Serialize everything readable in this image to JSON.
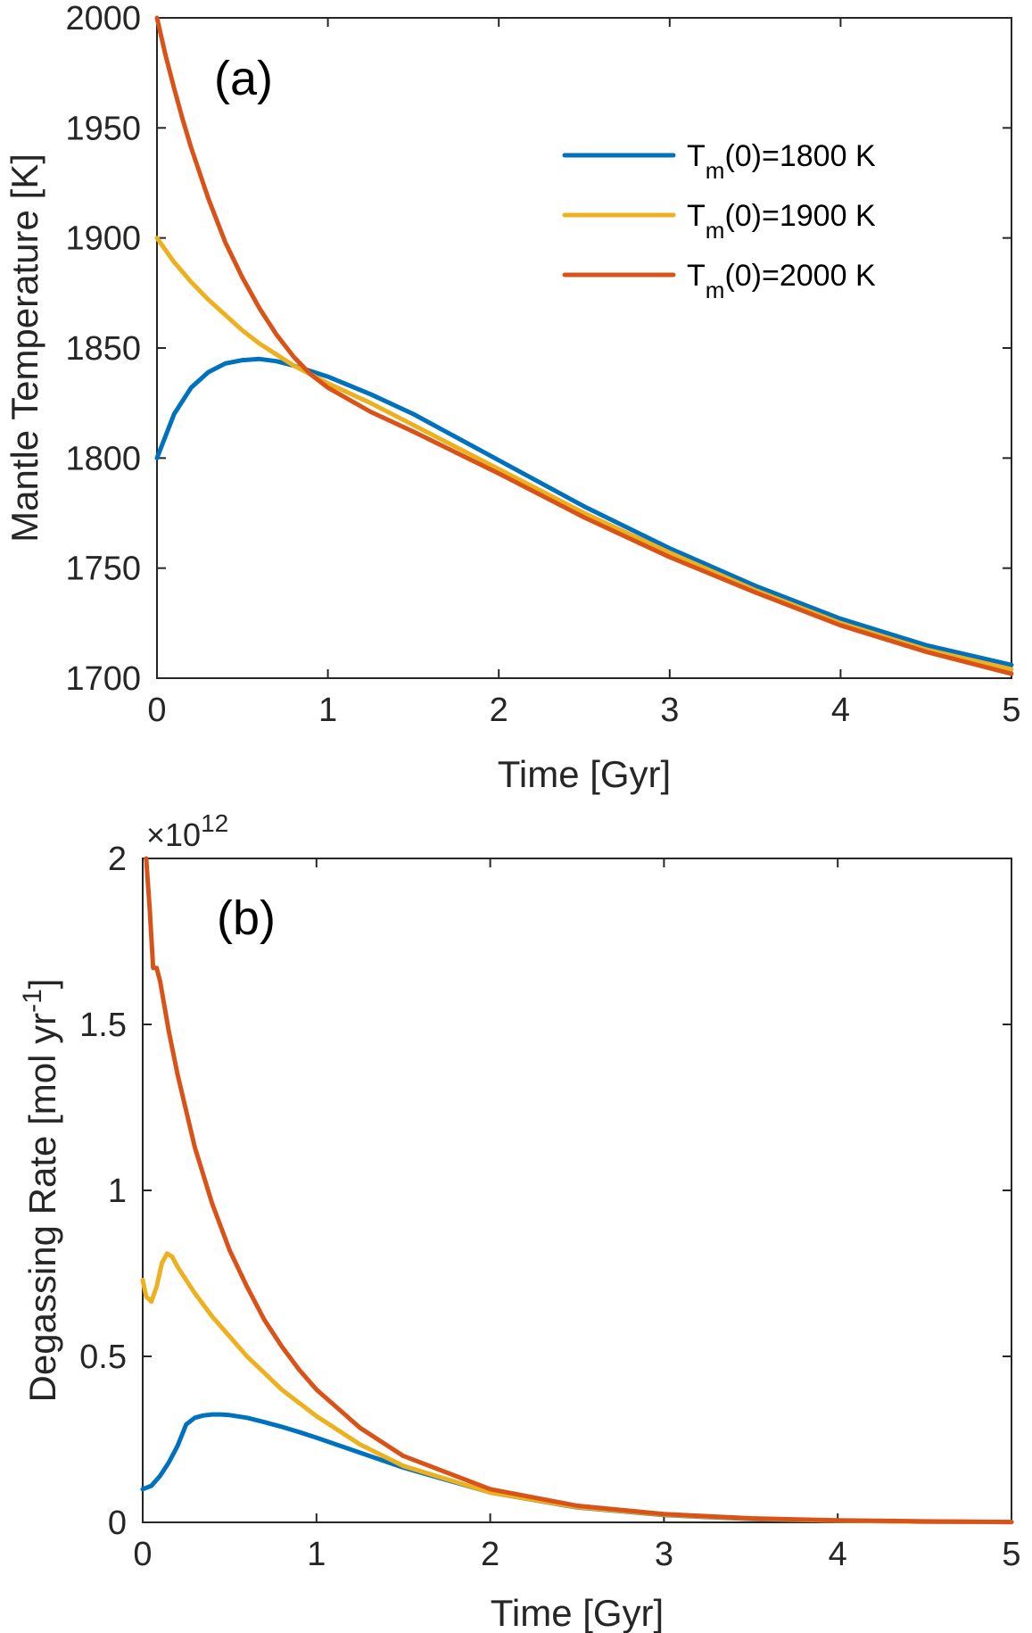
{
  "chart_data": [
    {
      "type": "line",
      "panel_label": "(a)",
      "xlabel": "Time [Gyr]",
      "ylabel": "Mantle Temperature [K]",
      "xlim": [
        0,
        5
      ],
      "ylim": [
        1700,
        2000
      ],
      "xticks": [
        0,
        1,
        2,
        3,
        4,
        5
      ],
      "yticks": [
        1700,
        1750,
        1800,
        1850,
        1900,
        1950,
        2000
      ],
      "grid": false,
      "legend": {
        "placement": "top-right",
        "entries": [
          {
            "prefix": "T",
            "subscript": "m",
            "suffix": "(0)=1800 K"
          },
          {
            "prefix": "T",
            "subscript": "m",
            "suffix": "(0)=1900 K"
          },
          {
            "prefix": "T",
            "subscript": "m",
            "suffix": "(0)=2000 K"
          }
        ]
      },
      "series": [
        {
          "name": "Tm(0)=1800 K",
          "color": "#0072BD",
          "x": [
            0,
            0.1,
            0.2,
            0.3,
            0.4,
            0.5,
            0.6,
            0.7,
            0.8,
            0.9,
            1.0,
            1.25,
            1.5,
            2.0,
            2.5,
            3.0,
            3.5,
            4.0,
            4.5,
            5.0
          ],
          "y": [
            1800,
            1820,
            1832,
            1839,
            1843,
            1844.5,
            1845,
            1844,
            1842,
            1839.5,
            1837,
            1829,
            1820,
            1799,
            1778,
            1759,
            1742,
            1727,
            1715,
            1706
          ]
        },
        {
          "name": "Tm(0)=1900 K",
          "color": "#EDB120",
          "x": [
            0,
            0.1,
            0.2,
            0.3,
            0.4,
            0.5,
            0.6,
            0.7,
            0.8,
            0.9,
            1.0,
            1.25,
            1.5,
            2.0,
            2.5,
            3.0,
            3.5,
            4.0,
            4.5,
            5.0
          ],
          "y": [
            1900,
            1889,
            1880,
            1872,
            1865,
            1858,
            1852,
            1847,
            1842,
            1838,
            1834,
            1825,
            1815,
            1795,
            1775,
            1757,
            1740,
            1725,
            1713,
            1704
          ]
        },
        {
          "name": "Tm(0)=2000 K",
          "color": "#D95319",
          "x": [
            0,
            0.05,
            0.1,
            0.15,
            0.2,
            0.3,
            0.4,
            0.5,
            0.6,
            0.7,
            0.8,
            0.9,
            1.0,
            1.25,
            1.5,
            2.0,
            2.5,
            3.0,
            3.5,
            4.0,
            4.5,
            5.0
          ],
          "y": [
            2000,
            1983,
            1968,
            1954,
            1941,
            1918,
            1898,
            1882,
            1868,
            1856,
            1846,
            1838,
            1832,
            1821,
            1812,
            1793,
            1773,
            1755,
            1739,
            1724,
            1712,
            1702
          ]
        }
      ]
    },
    {
      "type": "line",
      "panel_label": "(b)",
      "xlabel": "Time [Gyr]",
      "ylabel": "Degassing Rate [mol yr",
      "ylabel_superscript": "-1",
      "ylabel_close": "]",
      "exponent_prefix": "×10",
      "exponent_power": "12",
      "xlim": [
        0,
        5
      ],
      "ylim": [
        0,
        2
      ],
      "xticks": [
        0,
        1,
        2,
        3,
        4,
        5
      ],
      "yticks": [
        0,
        0.5,
        1,
        1.5,
        2
      ],
      "ytick_labels": [
        "0",
        "0.5",
        "1",
        "1.5",
        "2"
      ],
      "grid": false,
      "series": [
        {
          "name": "Tm(0)=1800 K",
          "color": "#0072BD",
          "x": [
            0,
            0.05,
            0.1,
            0.15,
            0.2,
            0.25,
            0.3,
            0.35,
            0.4,
            0.45,
            0.5,
            0.6,
            0.7,
            0.8,
            0.9,
            1.0,
            1.25,
            1.5,
            2.0,
            2.5,
            3.0,
            3.5,
            4.0,
            4.5,
            5.0
          ],
          "y": [
            0.1,
            0.11,
            0.14,
            0.18,
            0.23,
            0.295,
            0.315,
            0.322,
            0.325,
            0.325,
            0.323,
            0.315,
            0.302,
            0.288,
            0.272,
            0.255,
            0.21,
            0.165,
            0.09,
            0.045,
            0.022,
            0.01,
            0.005,
            0.002,
            0.001
          ]
        },
        {
          "name": "Tm(0)=1900 K",
          "color": "#EDB120",
          "x": [
            0,
            0.02,
            0.05,
            0.08,
            0.11,
            0.14,
            0.17,
            0.2,
            0.3,
            0.4,
            0.5,
            0.6,
            0.7,
            0.8,
            0.9,
            1.0,
            1.25,
            1.5,
            2.0,
            2.5,
            3.0,
            3.5,
            4.0,
            4.5,
            5.0
          ],
          "y": [
            0.73,
            0.68,
            0.665,
            0.71,
            0.78,
            0.81,
            0.8,
            0.77,
            0.69,
            0.62,
            0.56,
            0.5,
            0.45,
            0.4,
            0.36,
            0.32,
            0.235,
            0.17,
            0.09,
            0.046,
            0.023,
            0.011,
            0.005,
            0.002,
            0.001
          ]
        },
        {
          "name": "Tm(0)=2000 K",
          "color": "#D95319",
          "x": [
            0.02,
            0.04,
            0.06,
            0.08,
            0.1,
            0.15,
            0.2,
            0.3,
            0.4,
            0.5,
            0.6,
            0.7,
            0.8,
            0.9,
            1.0,
            1.25,
            1.5,
            2.0,
            2.5,
            3.0,
            3.5,
            4.0,
            4.5,
            5.0
          ],
          "y": [
            2.0,
            1.85,
            1.67,
            1.67,
            1.63,
            1.48,
            1.35,
            1.13,
            0.96,
            0.82,
            0.71,
            0.61,
            0.53,
            0.46,
            0.4,
            0.285,
            0.2,
            0.1,
            0.05,
            0.025,
            0.012,
            0.006,
            0.003,
            0.001
          ]
        }
      ]
    }
  ]
}
